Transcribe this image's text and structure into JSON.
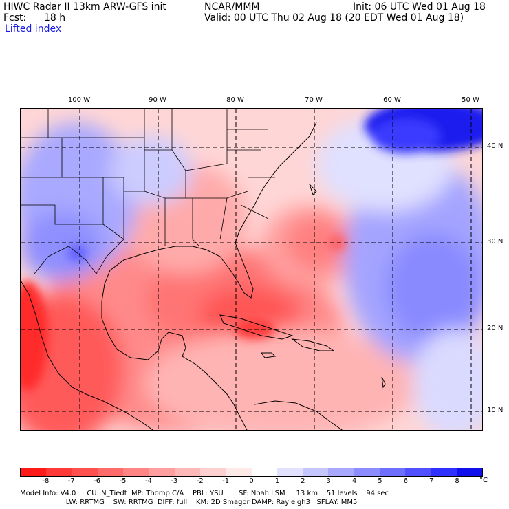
{
  "header": {
    "model_title": "HIWC Radar II 13km ARW-GFS init",
    "center": "NCAR/MMM",
    "init": "Init: 06 UTC Wed 01 Aug 18",
    "fcst_label": "Fcst:",
    "fcst_value": "18 h",
    "valid": "Valid: 00 UTC Thu 02 Aug 18 (20 EDT Wed 01 Aug 18)",
    "field": "Lifted index"
  },
  "map": {
    "longitude_labels": [
      "100 W",
      "90 W",
      "80 W",
      "70 W",
      "60 W",
      "50 W"
    ],
    "latitude_labels": [
      "40 N",
      "30 N",
      "20 N",
      "10 N"
    ],
    "gridlines": "dashed"
  },
  "colorbar": {
    "unit": "°C",
    "ticks": [
      "-8",
      "-7",
      "-6",
      "-5",
      "-4",
      "-3",
      "-2",
      "-1",
      "0",
      "1",
      "2",
      "3",
      "4",
      "5",
      "6",
      "7",
      "8"
    ],
    "colors": [
      "#ff1a1a",
      "#ff3838",
      "#ff5050",
      "#ff6a6a",
      "#ff8484",
      "#ff9e9e",
      "#ffb8b8",
      "#ffd0d0",
      "#ffeaea",
      "#ffffff",
      "#e2e2ff",
      "#c6c6ff",
      "#a8a8ff",
      "#8c8cff",
      "#6e6eff",
      "#5050ff",
      "#3030ff",
      "#1010ee"
    ]
  },
  "footer": {
    "line1": "Model Info: V4.0     CU: N_Tiedt  MP: Thomp C/A    PBL: YSU       SF: Noah LSM     13 km    51 levels    94 sec",
    "line2": "                     LW: RRTMG    SW: RRTMG  DIFF: full    KM: 2D Smagor DAMP: Rayleigh3   SFLAY: MM5"
  }
}
